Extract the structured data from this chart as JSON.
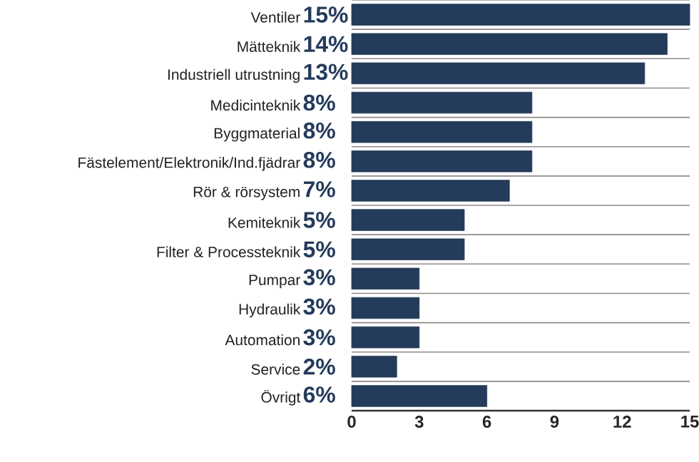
{
  "chart_data": {
    "type": "bar",
    "orientation": "horizontal",
    "categories": [
      "Ventiler",
      "Mätteknik",
      "Industriell utrustning",
      "Medicinteknik",
      "Byggmaterial",
      "Fästelement/Elektronik/Ind.fjädrar",
      "Rör & rörsystem",
      "Kemiteknik",
      "Filter & Processteknik",
      "Pumpar",
      "Hydraulik",
      "Automation",
      "Service",
      "Övrigt"
    ],
    "values": [
      15,
      14,
      13,
      8,
      8,
      8,
      7,
      5,
      5,
      3,
      3,
      3,
      2,
      6
    ],
    "value_labels": [
      "15%",
      "14%",
      "13%",
      "8%",
      "8%",
      "8%",
      "7%",
      "5%",
      "5%",
      "3%",
      "3%",
      "3%",
      "2%",
      "6%"
    ],
    "color": "#243b5b",
    "xlim": [
      0,
      15
    ],
    "xticks": [
      0,
      3,
      6,
      9,
      12,
      15
    ],
    "grid": "y"
  }
}
